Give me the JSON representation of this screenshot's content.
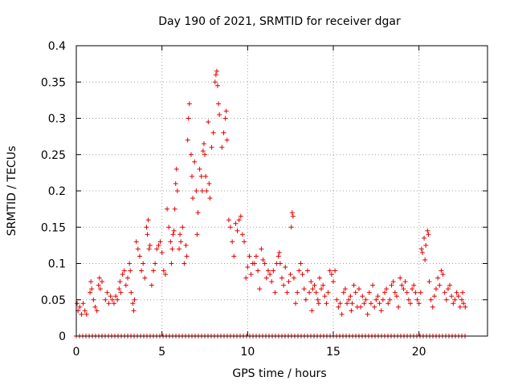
{
  "chart_data": {
    "type": "scatter",
    "title": "Day 190 of 2021, SRMTID for receiver dgar",
    "xlabel": "GPS time / hours",
    "ylabel": "SRMTID / TECUs",
    "xlim": [
      0,
      24
    ],
    "ylim": [
      0,
      0.4
    ],
    "grid": true,
    "marker": "+",
    "marker_color": "#e00000",
    "axis_color": "#000000",
    "grid_color": "#a0a0a0",
    "xticks": [
      0,
      5,
      10,
      15,
      20
    ],
    "xtick_labels": [
      "0",
      "5",
      "10",
      "15",
      "20"
    ],
    "yticks": [
      0,
      0.05,
      0.1,
      0.15,
      0.2,
      0.25,
      0.3,
      0.35,
      0.4
    ],
    "ytick_labels": [
      "0",
      "0.05",
      "0.1",
      "0.15",
      "0.2",
      "0.25",
      "0.3",
      "0.35",
      "0.4"
    ],
    "series": [
      {
        "name": "SRMTID",
        "points": [
          [
            0.05,
            0.045
          ],
          [
            0.1,
            0.035
          ],
          [
            0.2,
            0.04
          ],
          [
            0.3,
            0.03
          ],
          [
            0.4,
            0.045
          ],
          [
            0.5,
            0.035
          ],
          [
            0.6,
            0.03
          ],
          [
            0.8,
            0.06
          ],
          [
            0.85,
            0.075
          ],
          [
            0.9,
            0.065
          ],
          [
            1.0,
            0.05
          ],
          [
            1.1,
            0.04
          ],
          [
            1.2,
            0.035
          ],
          [
            1.3,
            0.07
          ],
          [
            1.35,
            0.08
          ],
          [
            1.4,
            0.065
          ],
          [
            1.5,
            0.075
          ],
          [
            1.7,
            0.05
          ],
          [
            1.8,
            0.06
          ],
          [
            1.9,
            0.045
          ],
          [
            2.0,
            0.055
          ],
          [
            2.1,
            0.05
          ],
          [
            2.2,
            0.045
          ],
          [
            2.3,
            0.055
          ],
          [
            2.4,
            0.05
          ],
          [
            2.5,
            0.065
          ],
          [
            2.55,
            0.075
          ],
          [
            2.6,
            0.06
          ],
          [
            2.7,
            0.085
          ],
          [
            2.8,
            0.09
          ],
          [
            2.9,
            0.07
          ],
          [
            3.0,
            0.08
          ],
          [
            3.1,
            0.1
          ],
          [
            3.15,
            0.09
          ],
          [
            3.2,
            0.06
          ],
          [
            3.3,
            0.045
          ],
          [
            3.35,
            0.035
          ],
          [
            3.4,
            0.05
          ],
          [
            3.5,
            0.13
          ],
          [
            3.6,
            0.12
          ],
          [
            3.7,
            0.11
          ],
          [
            3.8,
            0.09
          ],
          [
            3.9,
            0.1
          ],
          [
            4.0,
            0.08
          ],
          [
            4.1,
            0.15
          ],
          [
            4.15,
            0.14
          ],
          [
            4.2,
            0.16
          ],
          [
            4.25,
            0.12
          ],
          [
            4.3,
            0.125
          ],
          [
            4.4,
            0.07
          ],
          [
            4.5,
            0.09
          ],
          [
            4.6,
            0.1
          ],
          [
            4.7,
            0.12
          ],
          [
            4.8,
            0.125
          ],
          [
            4.9,
            0.13
          ],
          [
            5.0,
            0.115
          ],
          [
            5.1,
            0.09
          ],
          [
            5.2,
            0.085
          ],
          [
            5.3,
            0.175
          ],
          [
            5.4,
            0.15
          ],
          [
            5.5,
            0.13
          ],
          [
            5.55,
            0.1
          ],
          [
            5.6,
            0.12
          ],
          [
            5.65,
            0.14
          ],
          [
            5.7,
            0.145
          ],
          [
            5.75,
            0.175
          ],
          [
            5.8,
            0.21
          ],
          [
            5.85,
            0.23
          ],
          [
            5.9,
            0.2
          ],
          [
            6.0,
            0.12
          ],
          [
            6.05,
            0.14
          ],
          [
            6.1,
            0.13
          ],
          [
            6.2,
            0.15
          ],
          [
            6.3,
            0.1
          ],
          [
            6.4,
            0.125
          ],
          [
            6.45,
            0.11
          ],
          [
            6.5,
            0.27
          ],
          [
            6.55,
            0.3
          ],
          [
            6.6,
            0.32
          ],
          [
            6.7,
            0.25
          ],
          [
            6.75,
            0.22
          ],
          [
            6.8,
            0.19
          ],
          [
            6.9,
            0.24
          ],
          [
            7.0,
            0.2
          ],
          [
            7.05,
            0.14
          ],
          [
            7.1,
            0.17
          ],
          [
            7.2,
            0.23
          ],
          [
            7.3,
            0.22
          ],
          [
            7.35,
            0.2
          ],
          [
            7.4,
            0.255
          ],
          [
            7.45,
            0.265
          ],
          [
            7.5,
            0.25
          ],
          [
            7.55,
            0.22
          ],
          [
            7.6,
            0.2
          ],
          [
            7.7,
            0.295
          ],
          [
            7.75,
            0.21
          ],
          [
            7.8,
            0.19
          ],
          [
            7.9,
            0.26
          ],
          [
            8.0,
            0.28
          ],
          [
            8.1,
            0.35
          ],
          [
            8.15,
            0.36
          ],
          [
            8.2,
            0.365
          ],
          [
            8.25,
            0.345
          ],
          [
            8.3,
            0.32
          ],
          [
            8.35,
            0.305
          ],
          [
            8.5,
            0.26
          ],
          [
            8.6,
            0.28
          ],
          [
            8.7,
            0.3
          ],
          [
            8.75,
            0.31
          ],
          [
            8.8,
            0.27
          ],
          [
            8.9,
            0.16
          ],
          [
            9.0,
            0.15
          ],
          [
            9.1,
            0.13
          ],
          [
            9.2,
            0.11
          ],
          [
            9.3,
            0.155
          ],
          [
            9.4,
            0.145
          ],
          [
            9.5,
            0.16
          ],
          [
            9.6,
            0.165
          ],
          [
            9.7,
            0.14
          ],
          [
            9.8,
            0.13
          ],
          [
            9.9,
            0.08
          ],
          [
            10.0,
            0.095
          ],
          [
            10.1,
            0.11
          ],
          [
            10.2,
            0.085
          ],
          [
            10.3,
            0.1
          ],
          [
            10.4,
            0.1
          ],
          [
            10.5,
            0.11
          ],
          [
            10.6,
            0.09
          ],
          [
            10.7,
            0.065
          ],
          [
            10.8,
            0.12
          ],
          [
            10.9,
            0.105
          ],
          [
            11.0,
            0.1
          ],
          [
            11.1,
            0.08
          ],
          [
            11.2,
            0.09
          ],
          [
            11.3,
            0.085
          ],
          [
            11.4,
            0.075
          ],
          [
            11.5,
            0.09
          ],
          [
            11.6,
            0.06
          ],
          [
            11.7,
            0.1
          ],
          [
            11.8,
            0.11
          ],
          [
            11.85,
            0.115
          ],
          [
            11.9,
            0.1
          ],
          [
            12.0,
            0.08
          ],
          [
            12.1,
            0.07
          ],
          [
            12.2,
            0.095
          ],
          [
            12.3,
            0.06
          ],
          [
            12.4,
            0.075
          ],
          [
            12.5,
            0.085
          ],
          [
            12.55,
            0.15
          ],
          [
            12.6,
            0.17
          ],
          [
            12.65,
            0.165
          ],
          [
            12.7,
            0.08
          ],
          [
            12.8,
            0.045
          ],
          [
            12.9,
            0.06
          ],
          [
            13.0,
            0.09
          ],
          [
            13.1,
            0.1
          ],
          [
            13.2,
            0.085
          ],
          [
            13.3,
            0.065
          ],
          [
            13.4,
            0.05
          ],
          [
            13.5,
            0.09
          ],
          [
            13.6,
            0.06
          ],
          [
            13.7,
            0.075
          ],
          [
            13.75,
            0.035
          ],
          [
            13.8,
            0.065
          ],
          [
            13.9,
            0.07
          ],
          [
            14.0,
            0.06
          ],
          [
            14.1,
            0.05
          ],
          [
            14.15,
            0.045
          ],
          [
            14.2,
            0.08
          ],
          [
            14.3,
            0.065
          ],
          [
            14.4,
            0.07
          ],
          [
            14.5,
            0.055
          ],
          [
            14.6,
            0.045
          ],
          [
            14.7,
            0.06
          ],
          [
            14.8,
            0.09
          ],
          [
            14.9,
            0.085
          ],
          [
            15.0,
            0.075
          ],
          [
            15.1,
            0.09
          ],
          [
            15.2,
            0.05
          ],
          [
            15.3,
            0.04
          ],
          [
            15.4,
            0.045
          ],
          [
            15.5,
            0.03
          ],
          [
            15.6,
            0.06
          ],
          [
            15.7,
            0.065
          ],
          [
            15.8,
            0.045
          ],
          [
            15.9,
            0.05
          ],
          [
            16.0,
            0.055
          ],
          [
            16.05,
            0.035
          ],
          [
            16.1,
            0.045
          ],
          [
            16.2,
            0.07
          ],
          [
            16.3,
            0.06
          ],
          [
            16.4,
            0.04
          ],
          [
            16.5,
            0.065
          ],
          [
            16.6,
            0.04
          ],
          [
            16.7,
            0.055
          ],
          [
            16.8,
            0.045
          ],
          [
            16.9,
            0.05
          ],
          [
            17.0,
            0.03
          ],
          [
            17.1,
            0.06
          ],
          [
            17.2,
            0.045
          ],
          [
            17.3,
            0.07
          ],
          [
            17.4,
            0.04
          ],
          [
            17.5,
            0.05
          ],
          [
            17.6,
            0.055
          ],
          [
            17.7,
            0.045
          ],
          [
            17.8,
            0.035
          ],
          [
            17.9,
            0.05
          ],
          [
            18.0,
            0.06
          ],
          [
            18.1,
            0.065
          ],
          [
            18.2,
            0.045
          ],
          [
            18.3,
            0.05
          ],
          [
            18.4,
            0.07
          ],
          [
            18.5,
            0.075
          ],
          [
            18.6,
            0.06
          ],
          [
            18.7,
            0.055
          ],
          [
            18.8,
            0.04
          ],
          [
            18.9,
            0.08
          ],
          [
            19.0,
            0.07
          ],
          [
            19.1,
            0.065
          ],
          [
            19.2,
            0.075
          ],
          [
            19.3,
            0.06
          ],
          [
            19.4,
            0.05
          ],
          [
            19.5,
            0.045
          ],
          [
            19.6,
            0.065
          ],
          [
            19.7,
            0.07
          ],
          [
            19.8,
            0.06
          ],
          [
            19.9,
            0.05
          ],
          [
            20.0,
            0.045
          ],
          [
            20.1,
            0.06
          ],
          [
            20.15,
            0.12
          ],
          [
            20.2,
            0.115
          ],
          [
            20.3,
            0.135
          ],
          [
            20.35,
            0.105
          ],
          [
            20.4,
            0.125
          ],
          [
            20.5,
            0.145
          ],
          [
            20.55,
            0.14
          ],
          [
            20.6,
            0.075
          ],
          [
            20.7,
            0.05
          ],
          [
            20.8,
            0.04
          ],
          [
            20.9,
            0.055
          ],
          [
            21.0,
            0.065
          ],
          [
            21.1,
            0.08
          ],
          [
            21.2,
            0.07
          ],
          [
            21.3,
            0.09
          ],
          [
            21.4,
            0.085
          ],
          [
            21.5,
            0.06
          ],
          [
            21.6,
            0.05
          ],
          [
            21.7,
            0.065
          ],
          [
            21.8,
            0.07
          ],
          [
            21.9,
            0.055
          ],
          [
            22.0,
            0.045
          ],
          [
            22.1,
            0.05
          ],
          [
            22.2,
            0.06
          ],
          [
            22.3,
            0.055
          ],
          [
            22.4,
            0.04
          ],
          [
            22.5,
            0.05
          ],
          [
            22.55,
            0.06
          ],
          [
            22.6,
            0.045
          ],
          [
            22.7,
            0.04
          ]
        ],
        "zero_band_x_range": [
          0,
          22.8
        ]
      }
    ]
  }
}
